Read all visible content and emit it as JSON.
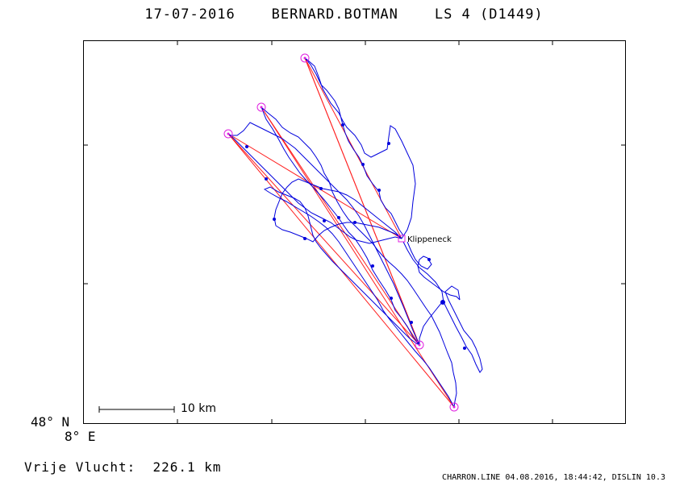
{
  "header": {
    "title": "17-07-2016    BERNARD.BOTMAN    LS 4 (D1449)"
  },
  "map": {
    "lat_label": "48° N",
    "lon_label": "8° E",
    "scale_label": "10 km",
    "turnpoint_label": "Klippeneck",
    "colors": {
      "track": "#0000dd",
      "task_line": "#ff2020",
      "turnpoint": "#e020e0"
    }
  },
  "footer": {
    "distance": "Vrije Vlucht:  226.1 km",
    "credit": "CHARRON.LINE 04.08.2016, 18:44:42, DISLIN 10.3"
  }
}
